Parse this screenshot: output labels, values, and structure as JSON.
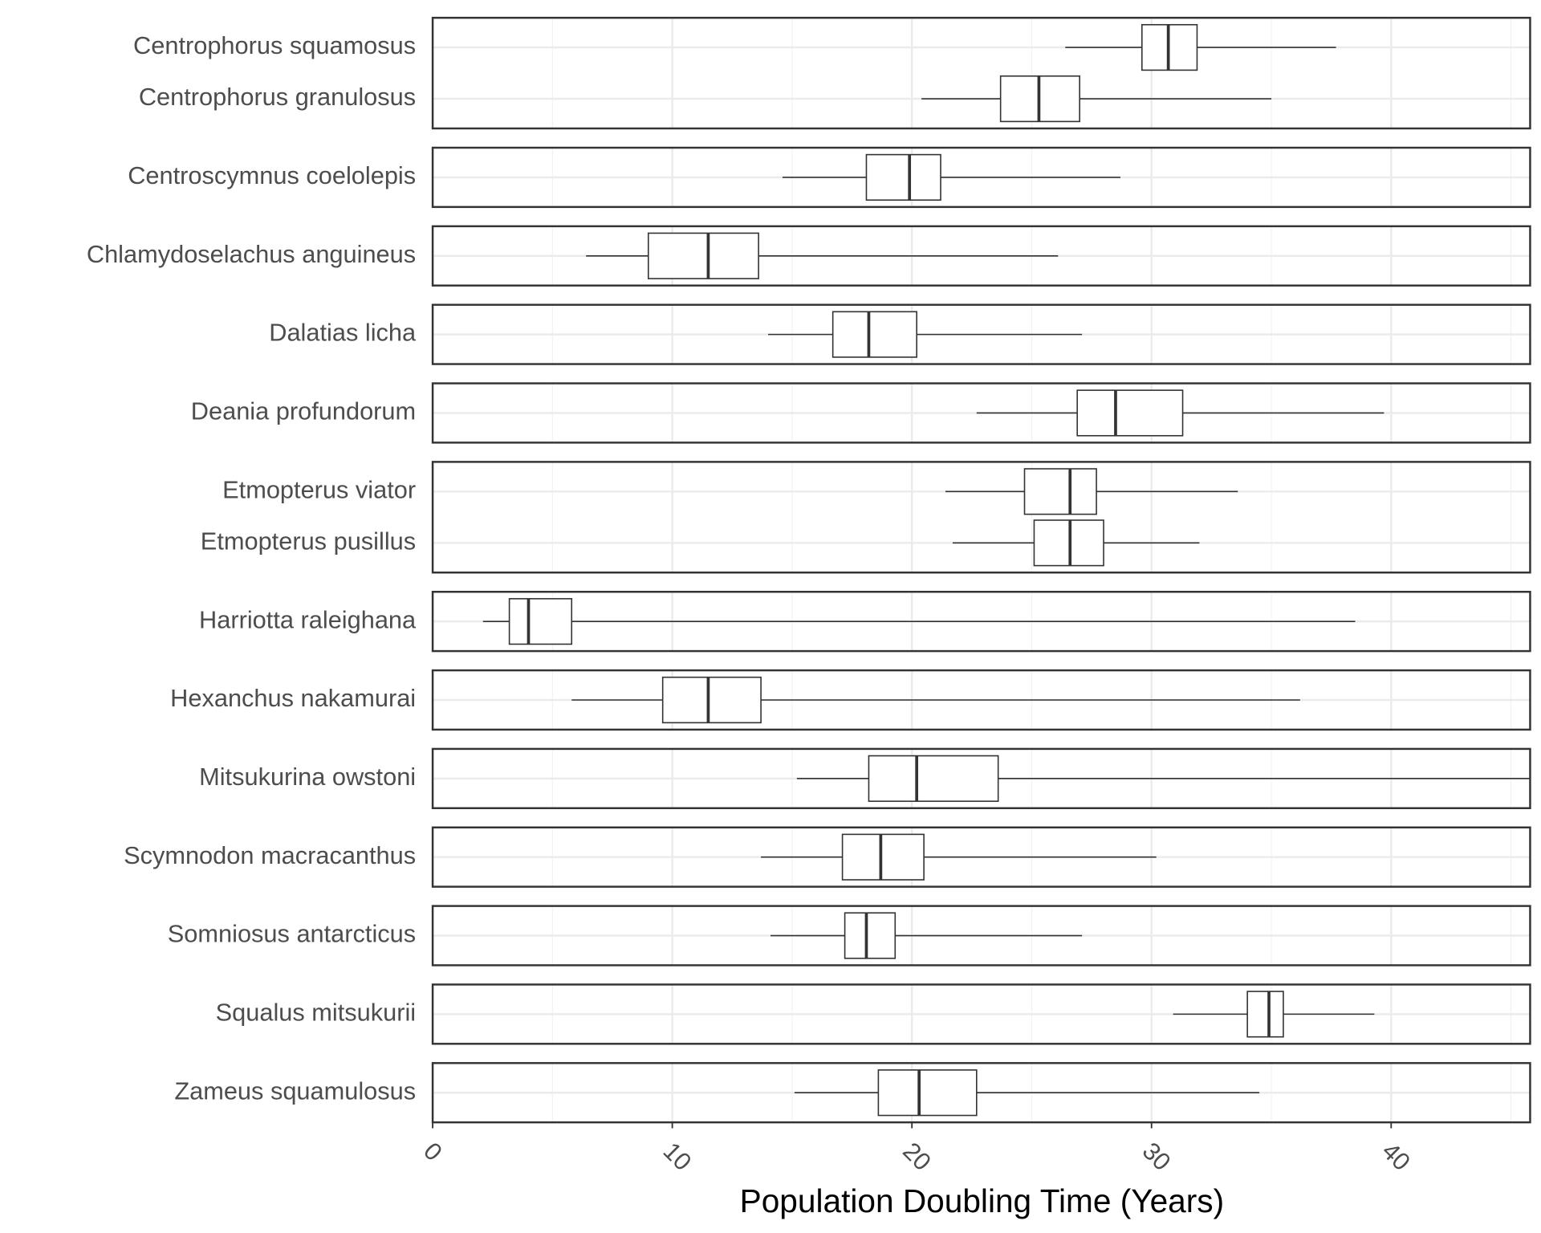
{
  "chart_data": {
    "type": "boxplot",
    "x_label": "Population Doubling Time (Years)",
    "xlim": [
      0,
      45.8
    ],
    "xticks": [
      0,
      10,
      20,
      30,
      40
    ],
    "grid": true,
    "box_color": "#333333",
    "panels": [
      {
        "categories": [
          "Centrophorus squamosus",
          "Centrophorus granulosus"
        ],
        "stats": [
          [
            26.4,
            29.6,
            30.7,
            31.9,
            37.7
          ],
          [
            20.4,
            23.7,
            25.3,
            27.0,
            35.0
          ]
        ]
      },
      {
        "categories": [
          "Centroscymnus coelolepis"
        ],
        "stats": [
          [
            14.6,
            18.1,
            19.9,
            21.2,
            28.7
          ]
        ]
      },
      {
        "categories": [
          "Chlamydoselachus anguineus"
        ],
        "stats": [
          [
            6.4,
            9.0,
            11.5,
            13.6,
            26.1
          ]
        ]
      },
      {
        "categories": [
          "Dalatias licha"
        ],
        "stats": [
          [
            14.0,
            16.7,
            18.2,
            20.2,
            27.1
          ]
        ]
      },
      {
        "categories": [
          "Deania profundorum"
        ],
        "stats": [
          [
            22.7,
            26.9,
            28.5,
            31.3,
            39.7
          ]
        ]
      },
      {
        "categories": [
          "Etmopterus viator",
          "Etmopterus pusillus"
        ],
        "stats": [
          [
            21.4,
            24.7,
            26.6,
            27.7,
            33.6
          ],
          [
            21.7,
            25.1,
            26.6,
            28.0,
            32.0
          ]
        ]
      },
      {
        "categories": [
          "Harriotta raleighana"
        ],
        "stats": [
          [
            2.1,
            3.2,
            4.0,
            5.8,
            38.5
          ]
        ]
      },
      {
        "categories": [
          "Hexanchus nakamurai"
        ],
        "stats": [
          [
            5.8,
            9.6,
            11.5,
            13.7,
            36.2
          ]
        ]
      },
      {
        "categories": [
          "Mitsukurina owstoni"
        ],
        "stats": [
          [
            15.2,
            18.2,
            20.2,
            23.6,
            45.8
          ]
        ]
      },
      {
        "categories": [
          "Scymnodon macracanthus"
        ],
        "stats": [
          [
            13.7,
            17.1,
            18.7,
            20.5,
            30.2
          ]
        ]
      },
      {
        "categories": [
          "Somniosus antarcticus"
        ],
        "stats": [
          [
            14.1,
            17.2,
            18.1,
            19.3,
            27.1
          ]
        ]
      },
      {
        "categories": [
          "Squalus mitsukurii"
        ],
        "stats": [
          [
            30.9,
            34.0,
            34.9,
            35.5,
            39.3
          ]
        ]
      },
      {
        "categories": [
          "Zameus squamulosus"
        ],
        "stats": [
          [
            15.1,
            18.6,
            20.3,
            22.7,
            34.5
          ]
        ]
      }
    ]
  }
}
